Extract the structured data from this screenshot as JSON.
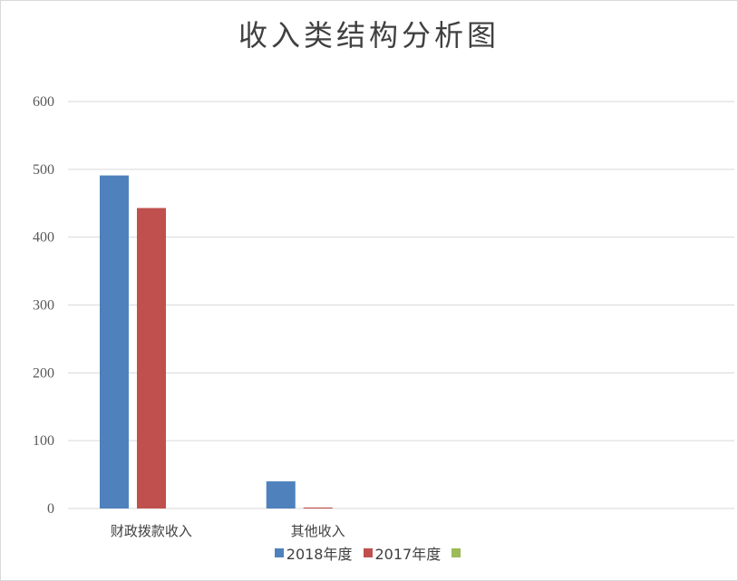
{
  "chart_data": {
    "type": "bar",
    "title": "收入类结构分析图",
    "categories": [
      "财政拨款收入",
      "其他收入",
      "",
      ""
    ],
    "series": [
      {
        "name": "2018年度",
        "color": "#4f81bd",
        "values": [
          491,
          40,
          null,
          null
        ]
      },
      {
        "name": "2017年度",
        "color": "#c0504d",
        "values": [
          443,
          1.5,
          null,
          null
        ]
      },
      {
        "name": "",
        "color": "#9bbb59",
        "values": [
          null,
          null,
          null,
          null
        ]
      }
    ],
    "ylim": [
      0,
      600
    ],
    "yticks": [
      0,
      100,
      200,
      300,
      400,
      500,
      600
    ],
    "grid": true,
    "legend": "bottom"
  }
}
